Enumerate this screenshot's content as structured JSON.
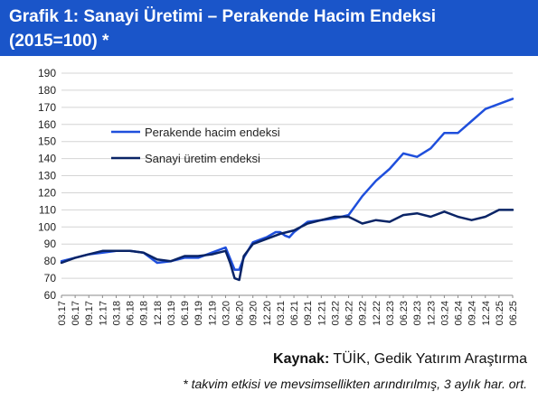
{
  "header": {
    "title_line1": "Grafik 1: Sanayi Üretimi – Perakende Hacim Endeksi",
    "title_line2": "(2015=100) *",
    "background_color": "#1a55c9"
  },
  "source": {
    "label": "Kaynak",
    "separator": ":",
    "text": " TÜİK, Gedik Yatırım Araştırma"
  },
  "footnote": "* takvim etkisi ve mevsimsellikten arındırılmış, 3 aylık har. ort.",
  "chart_data": {
    "type": "line",
    "title": "",
    "xlabel": "",
    "ylabel": "",
    "ylim": [
      60,
      190
    ],
    "yticks": [
      60,
      70,
      80,
      90,
      100,
      110,
      120,
      130,
      140,
      150,
      160,
      170,
      180,
      190
    ],
    "grid": true,
    "legend_placement": "upper-left",
    "x_labels": [
      "03.17",
      "06.17",
      "09.17",
      "12.17",
      "03.18",
      "06.18",
      "09.18",
      "12.18",
      "03.19",
      "06.19",
      "09.19",
      "12.19",
      "03.20",
      "06.20",
      "09.20",
      "12.20",
      "03.21",
      "06.21",
      "09.21",
      "12.21",
      "03.22",
      "06.22",
      "09.22",
      "12.22",
      "03.23",
      "06.23",
      "09.23",
      "12.23",
      "03.24",
      "06.24",
      "09.24",
      "12.24",
      "03.25",
      "06.25"
    ],
    "series": [
      {
        "name": "Perakende hacim endeksi",
        "color": "#1f4fdc",
        "points": [
          [
            "03.17",
            80
          ],
          [
            "06.17",
            82
          ],
          [
            "09.17",
            84
          ],
          [
            "12.17",
            85
          ],
          [
            "03.18",
            86
          ],
          [
            "06.18",
            86
          ],
          [
            "09.18",
            85
          ],
          [
            "12.18",
            79
          ],
          [
            "03.19",
            80
          ],
          [
            "06.19",
            82
          ],
          [
            "09.19",
            82
          ],
          [
            "12.19",
            85
          ],
          [
            "03.20",
            88
          ],
          [
            "05.20",
            75
          ],
          [
            "06.20",
            75
          ],
          [
            "07.20",
            82
          ],
          [
            "09.20",
            91
          ],
          [
            "12.20",
            94
          ],
          [
            "02.21",
            97
          ],
          [
            "03.21",
            97
          ],
          [
            "04.21",
            95
          ],
          [
            "05.21",
            94
          ],
          [
            "06.21",
            97
          ],
          [
            "09.21",
            103
          ],
          [
            "12.21",
            104
          ],
          [
            "03.22",
            105
          ],
          [
            "06.22",
            107
          ],
          [
            "09.22",
            118
          ],
          [
            "12.22",
            127
          ],
          [
            "03.23",
            134
          ],
          [
            "06.23",
            143
          ],
          [
            "09.23",
            141
          ],
          [
            "12.23",
            146
          ],
          [
            "03.24",
            155
          ],
          [
            "06.24",
            155
          ],
          [
            "09.24",
            162
          ],
          [
            "12.24",
            169
          ],
          [
            "03.25",
            172
          ],
          [
            "06.25",
            175
          ]
        ]
      },
      {
        "name": "Sanayi üretim endeksi",
        "color": "#0a2466",
        "points": [
          [
            "03.17",
            79
          ],
          [
            "06.17",
            82
          ],
          [
            "09.17",
            84
          ],
          [
            "12.17",
            86
          ],
          [
            "03.18",
            86
          ],
          [
            "06.18",
            86
          ],
          [
            "09.18",
            85
          ],
          [
            "12.18",
            81
          ],
          [
            "03.19",
            80
          ],
          [
            "06.19",
            83
          ],
          [
            "09.19",
            83
          ],
          [
            "12.19",
            84
          ],
          [
            "03.20",
            86
          ],
          [
            "04.20",
            79
          ],
          [
            "05.20",
            70
          ],
          [
            "06.20",
            69
          ],
          [
            "07.20",
            83
          ],
          [
            "09.20",
            90
          ],
          [
            "12.20",
            93
          ],
          [
            "03.21",
            96
          ],
          [
            "06.21",
            98
          ],
          [
            "09.21",
            102
          ],
          [
            "12.21",
            104
          ],
          [
            "03.22",
            106
          ],
          [
            "06.22",
            106
          ],
          [
            "09.22",
            102
          ],
          [
            "12.22",
            104
          ],
          [
            "03.23",
            103
          ],
          [
            "06.23",
            107
          ],
          [
            "09.23",
            108
          ],
          [
            "12.23",
            106
          ],
          [
            "03.24",
            109
          ],
          [
            "06.24",
            106
          ],
          [
            "09.24",
            104
          ],
          [
            "12.24",
            106
          ],
          [
            "03.25",
            110
          ],
          [
            "06.25",
            110
          ]
        ]
      }
    ]
  }
}
